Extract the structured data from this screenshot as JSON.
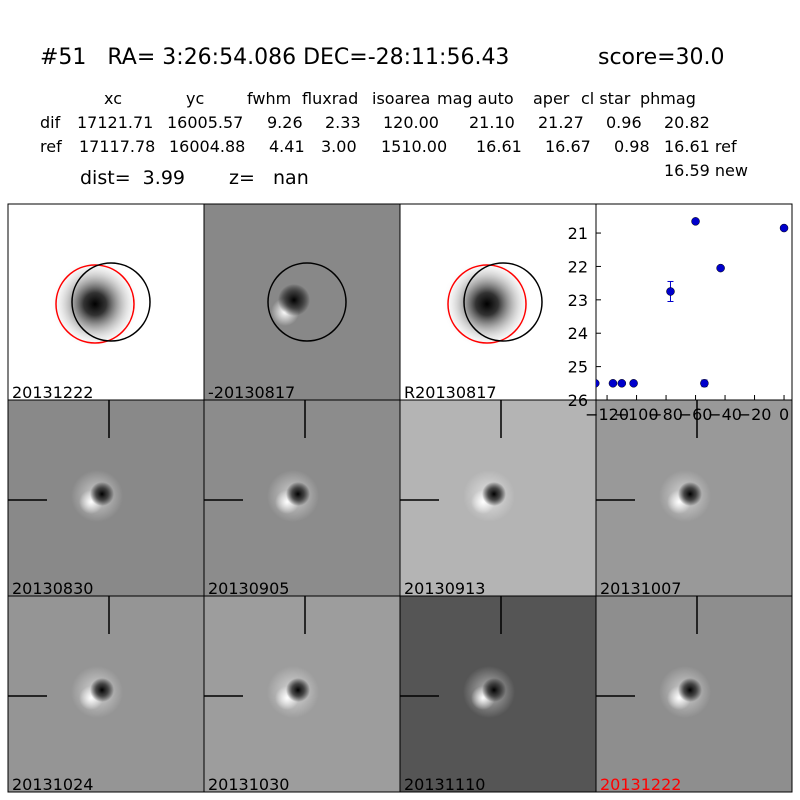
{
  "header": {
    "title": "#51   RA= 3:26:54.086 DEC=-28:11:56.43",
    "score": "score=30.0"
  },
  "table": {
    "header": [
      "xc",
      "yc",
      "fwhm",
      "fluxrad",
      "isoarea",
      "mag auto",
      "aper",
      "cl star",
      "phmag"
    ],
    "rows": [
      [
        "dif",
        "17121.71",
        "16005.57",
        "9.26",
        "2.33",
        "120.00",
        "21.10",
        "21.27",
        "0.96",
        "20.82"
      ],
      [
        "ref",
        "17117.78",
        "16004.88",
        "4.41",
        "3.00",
        "1510.00",
        "16.61",
        "16.67",
        "0.98",
        "16.61 ref"
      ]
    ],
    "extra": "16.59 new"
  },
  "dist": "dist=  3.99",
  "z": "z=   nan",
  "panels": [
    {
      "label": "20131222",
      "label_color": "#000"
    },
    {
      "label": "-20130817",
      "label_color": "#000"
    },
    {
      "label": "R20130817",
      "label_color": "#000"
    },
    {
      "label": "20130830",
      "label_color": "#000"
    },
    {
      "label": "20130905",
      "label_color": "#000"
    },
    {
      "label": "20130913",
      "label_color": "#000"
    },
    {
      "label": "20131007",
      "label_color": "#000"
    },
    {
      "label": "20131024",
      "label_color": "#000"
    },
    {
      "label": "20131030",
      "label_color": "#000"
    },
    {
      "label": "20131110",
      "label_color": "#000"
    },
    {
      "label": "20131222",
      "label_color": "red"
    }
  ],
  "chart_data": {
    "type": "scatter",
    "x": [
      -128,
      -116,
      -110,
      -102,
      -77,
      -60,
      -54,
      -43,
      0
    ],
    "values": [
      25.5,
      25.5,
      25.5,
      25.5,
      22.75,
      20.65,
      25.5,
      22.05,
      20.85
    ],
    "errors": [
      0.05,
      0.05,
      0.05,
      0.05,
      0.3,
      0.02,
      0.1,
      0.02,
      0.02
    ],
    "color": "#0000cc",
    "xlim": [
      -127.5,
      5.4
    ],
    "ylim": [
      26,
      20.13
    ],
    "xticks": [
      {
        "value": -120,
        "label": "−120"
      },
      {
        "value": -100,
        "label": "−100"
      },
      {
        "value": -80,
        "label": "−80"
      },
      {
        "value": -60,
        "label": "−60"
      },
      {
        "value": -40,
        "label": "−40"
      },
      {
        "value": -20,
        "label": "−20"
      },
      0
    ],
    "yticks": [
      21,
      22,
      23,
      24,
      25,
      26
    ]
  }
}
